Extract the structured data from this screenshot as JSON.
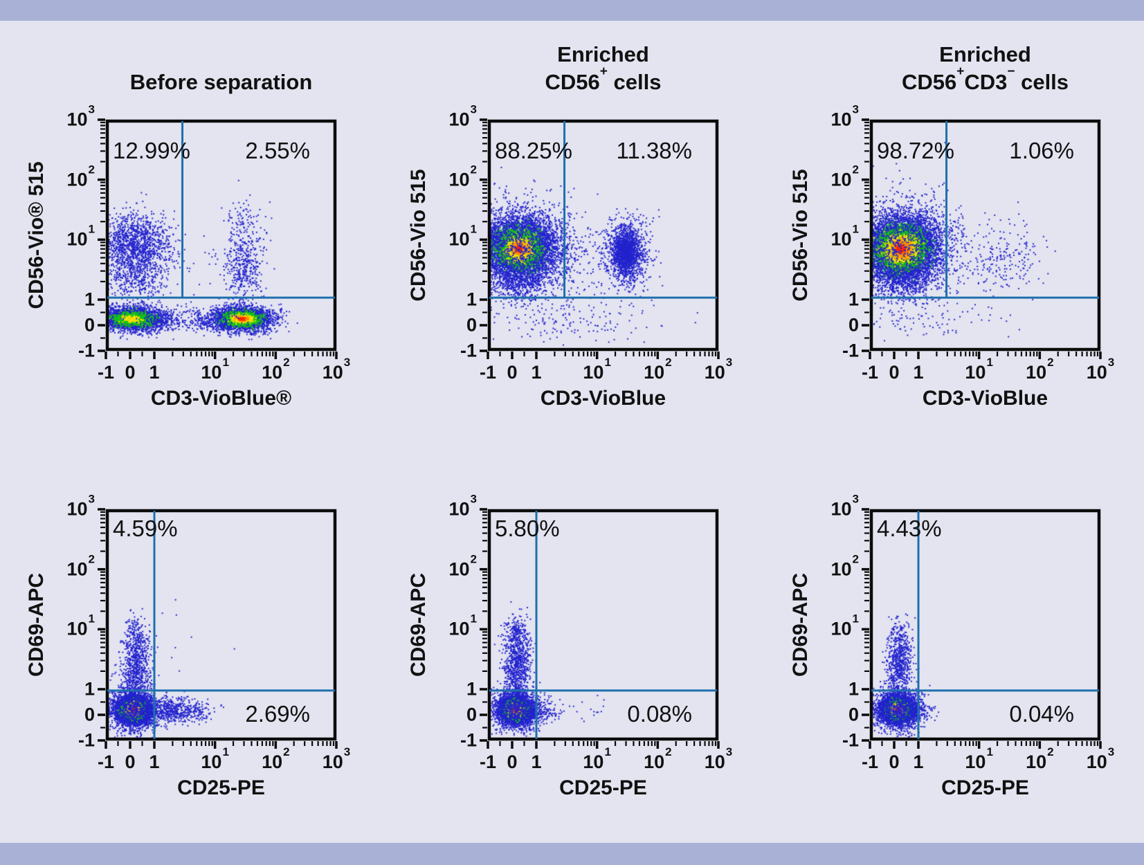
{
  "figure": {
    "background": "#e3e4f0",
    "band_color": "#a9b2d6",
    "frame_color": "#0b0b0b",
    "gate_color": "#1f6fad",
    "text_color": "#111111",
    "dot_palette": {
      "blue": "#2323cd",
      "green": "#17c317",
      "yellow": "#ffe000",
      "orange": "#ff8a00",
      "red": "#ff2600"
    }
  },
  "chart_data": {
    "type": "scatter",
    "scale": "biexponential (linear -1..1, log10 1..1000)",
    "x_range": [
      -1,
      1000
    ],
    "y_range": [
      -1,
      1000
    ],
    "ticks": [
      {
        "v": -1,
        "b": "-1",
        "s": ""
      },
      {
        "v": 0,
        "b": "0",
        "s": ""
      },
      {
        "v": 1,
        "b": "1",
        "s": ""
      },
      {
        "v": 10,
        "b": "10",
        "s": "1"
      },
      {
        "v": 100,
        "b": "10",
        "s": "2"
      },
      {
        "v": 1000,
        "b": "10",
        "s": "3"
      }
    ],
    "panels": [
      {
        "title": {
          "lines": [
            [
              {
                "t": "Before separation"
              }
            ]
          ]
        },
        "y_label": "CD56-Vio® 515",
        "x_label": "CD3-VioBlue®",
        "percentages": {
          "upper_left": "12.99%",
          "upper_right": "2.55%"
        },
        "gates": {
          "v_x": 2.9,
          "h_y": 1.08,
          "v_extent": "above_h"
        },
        "clusters": [
          {
            "x": 0.1,
            "y": 0.25,
            "sx": 26,
            "sy": 9,
            "n": 2500,
            "layers": [
              [
                "blue",
                1,
                1
              ],
              [
                "green",
                0.38,
                0.5
              ],
              [
                "yellow",
                0.05,
                0.28
              ]
            ]
          },
          {
            "x": 28,
            "y": 0.25,
            "sx": 23,
            "sy": 9,
            "n": 2600,
            "layers": [
              [
                "blue",
                1,
                1
              ],
              [
                "green",
                0.45,
                0.52
              ],
              [
                "yellow",
                0.15,
                0.3
              ],
              [
                "orange",
                0.05,
                0.2
              ],
              [
                "red",
                0.015,
                0.12
              ]
            ]
          },
          {
            "x": 4,
            "y": 0.2,
            "sx": 45,
            "sy": 10,
            "n": 260,
            "layers": [
              [
                "blue",
                1,
                1
              ]
            ]
          },
          {
            "x": 0.25,
            "y": 8,
            "sx": 25,
            "sy": 24,
            "n": 1300,
            "layers": [
              [
                "blue",
                1,
                1
              ]
            ]
          },
          {
            "x": 0.25,
            "y": 2.2,
            "sx": 22,
            "sy": 14,
            "n": 280,
            "layers": [
              [
                "blue",
                1,
                1
              ]
            ]
          },
          {
            "x": 30,
            "y": 3.5,
            "sx": 15,
            "sy": 26,
            "n": 430,
            "layers": [
              [
                "blue",
                1,
                1
              ]
            ]
          },
          {
            "x": 30,
            "y": 22,
            "sx": 14,
            "sy": 14,
            "n": 70,
            "layers": [
              [
                "blue",
                1,
                1
              ]
            ]
          },
          {
            "x": 3,
            "y": 6,
            "sx": 55,
            "sy": 30,
            "n": 55,
            "layers": [
              [
                "blue",
                1,
                1
              ]
            ]
          }
        ]
      },
      {
        "title": {
          "lines": [
            [
              {
                "t": "Enriched"
              }
            ],
            [
              {
                "t": "CD56"
              },
              {
                "t": "+",
                "sup": true
              },
              {
                "t": " cells"
              }
            ]
          ]
        },
        "y_label": "CD56-Vio 515",
        "x_label": "CD3-VioBlue",
        "percentages": {
          "upper_left": "88.25%",
          "upper_right": "11.38%"
        },
        "gates": {
          "v_x": 2.9,
          "h_y": 1.08,
          "v_extent": "above_h"
        },
        "clusters": [
          {
            "x": 0.3,
            "y": 7,
            "sx": 26,
            "sy": 23,
            "n": 5200,
            "layers": [
              [
                "blue",
                1,
                1
              ],
              [
                "green",
                0.45,
                0.55
              ],
              [
                "yellow",
                0.16,
                0.34
              ],
              [
                "orange",
                0.05,
                0.2
              ],
              [
                "red",
                0.012,
                0.1
              ]
            ]
          },
          {
            "x": 0.3,
            "y": 7,
            "sx": 42,
            "sy": 36,
            "n": 1400,
            "layers": [
              [
                "blue",
                1,
                1
              ]
            ]
          },
          {
            "x": 0.3,
            "y": 1.8,
            "sx": 22,
            "sy": 12,
            "n": 300,
            "layers": [
              [
                "blue",
                1,
                1
              ]
            ]
          },
          {
            "x": 30,
            "y": 6,
            "sx": 14,
            "sy": 21,
            "n": 1150,
            "layers": [
              [
                "blue",
                1,
                1
              ],
              [
                "blue",
                0.5,
                0.5
              ]
            ]
          },
          {
            "x": 30,
            "y": 6,
            "sx": 22,
            "sy": 30,
            "n": 230,
            "layers": [
              [
                "blue",
                1,
                1
              ]
            ]
          },
          {
            "x": 4,
            "y": 4,
            "sx": 45,
            "sy": 35,
            "n": 90,
            "layers": [
              [
                "blue",
                1,
                1
              ]
            ]
          },
          {
            "x": 3,
            "y": 0.1,
            "sx": 70,
            "sy": 15,
            "n": 140,
            "layers": [
              [
                "blue",
                1,
                1
              ]
            ]
          }
        ]
      },
      {
        "title": {
          "lines": [
            [
              {
                "t": "Enriched"
              }
            ],
            [
              {
                "t": "CD56"
              },
              {
                "t": "+",
                "sup": true
              },
              {
                "t": "CD3"
              },
              {
                "t": "−",
                "sup": true
              },
              {
                "t": " cells"
              }
            ]
          ]
        },
        "y_label": "CD56-Vio 515",
        "x_label": "CD3-VioBlue",
        "percentages": {
          "upper_left": "98.72%",
          "upper_right": "1.06%"
        },
        "gates": {
          "v_x": 2.9,
          "h_y": 1.08,
          "v_extent": "above_h"
        },
        "clusters": [
          {
            "x": 0.3,
            "y": 7,
            "sx": 27,
            "sy": 24,
            "n": 6500,
            "layers": [
              [
                "blue",
                1,
                1
              ],
              [
                "green",
                0.5,
                0.58
              ],
              [
                "yellow",
                0.22,
                0.38
              ],
              [
                "orange",
                0.08,
                0.24
              ],
              [
                "red",
                0.02,
                0.12
              ]
            ]
          },
          {
            "x": 0.3,
            "y": 7,
            "sx": 44,
            "sy": 38,
            "n": 1300,
            "layers": [
              [
                "blue",
                1,
                1
              ]
            ]
          },
          {
            "x": 0.3,
            "y": 1.8,
            "sx": 22,
            "sy": 12,
            "n": 260,
            "layers": [
              [
                "blue",
                1,
                1
              ]
            ]
          },
          {
            "x": 25,
            "y": 5,
            "sx": 28,
            "sy": 26,
            "n": 210,
            "layers": [
              [
                "blue",
                1,
                1
              ]
            ]
          },
          {
            "x": 1.5,
            "y": 0.1,
            "sx": 55,
            "sy": 14,
            "n": 80,
            "layers": [
              [
                "blue",
                1,
                1
              ]
            ]
          }
        ]
      },
      {
        "title": {
          "lines": []
        },
        "y_label": "CD69-APC",
        "x_label": "CD25-PE",
        "percentages": {
          "upper_left": "4.59%",
          "lower_right": "2.69%"
        },
        "gates": {
          "v_x": 1.0,
          "h_y": 0.95,
          "v_extent": "full"
        },
        "clusters": [
          {
            "x": 0.15,
            "y": 0.2,
            "sx": 12,
            "sy": 10,
            "n": 4200,
            "layers": [
              [
                "blue",
                1,
                1
              ],
              [
                "green",
                0.5,
                0.55
              ],
              [
                "yellow",
                0.22,
                0.36
              ],
              [
                "orange",
                0.07,
                0.22
              ],
              [
                "red",
                0.02,
                0.12
              ]
            ]
          },
          {
            "x": 0.15,
            "y": 0.2,
            "sx": 20,
            "sy": 17,
            "n": 1000,
            "layers": [
              [
                "blue",
                1,
                1
              ]
            ]
          },
          {
            "x": 0.25,
            "y": 2.5,
            "sx": 10,
            "sy": 26,
            "n": 700,
            "layers": [
              [
                "blue",
                1,
                1
              ]
            ]
          },
          {
            "x": 0.25,
            "y": 9,
            "sx": 9,
            "sy": 12,
            "n": 85,
            "layers": [
              [
                "blue",
                1,
                1
              ]
            ]
          },
          {
            "x": 1.8,
            "y": 0.15,
            "sx": 24,
            "sy": 9,
            "n": 520,
            "layers": [
              [
                "blue",
                1,
                1
              ]
            ]
          },
          {
            "x": 5,
            "y": 0.1,
            "sx": 14,
            "sy": 8,
            "n": 80,
            "layers": [
              [
                "blue",
                1,
                1
              ]
            ]
          },
          {
            "x": 4,
            "y": 3,
            "sx": 45,
            "sy": 35,
            "n": 10,
            "layers": [
              [
                "blue",
                1,
                1
              ]
            ]
          }
        ]
      },
      {
        "title": {
          "lines": []
        },
        "y_label": "CD69-APC",
        "x_label": "CD25-PE",
        "percentages": {
          "upper_left": "5.80%",
          "lower_right": "0.08%"
        },
        "gates": {
          "v_x": 1.0,
          "h_y": 0.95,
          "v_extent": "full"
        },
        "clusters": [
          {
            "x": 0.15,
            "y": 0.2,
            "sx": 12,
            "sy": 10,
            "n": 3900,
            "layers": [
              [
                "blue",
                1,
                1
              ],
              [
                "green",
                0.5,
                0.55
              ],
              [
                "yellow",
                0.2,
                0.34
              ],
              [
                "orange",
                0.05,
                0.2
              ],
              [
                "red",
                0.012,
                0.1
              ]
            ]
          },
          {
            "x": 0.15,
            "y": 0.2,
            "sx": 19,
            "sy": 16,
            "n": 900,
            "layers": [
              [
                "blue",
                1,
                1
              ]
            ]
          },
          {
            "x": 0.2,
            "y": 2.8,
            "sx": 10,
            "sy": 27,
            "n": 800,
            "layers": [
              [
                "blue",
                1,
                1
              ]
            ]
          },
          {
            "x": 0.2,
            "y": 10,
            "sx": 9,
            "sy": 11,
            "n": 110,
            "layers": [
              [
                "blue",
                1,
                1
              ]
            ]
          },
          {
            "x": 1.2,
            "y": 0.15,
            "sx": 14,
            "sy": 8,
            "n": 150,
            "layers": [
              [
                "blue",
                1,
                1
              ]
            ]
          },
          {
            "x": 3.5,
            "y": 0.3,
            "sx": 26,
            "sy": 10,
            "n": 20,
            "layers": [
              [
                "blue",
                1,
                1
              ]
            ]
          }
        ]
      },
      {
        "title": {
          "lines": []
        },
        "y_label": "CD69-APC",
        "x_label": "CD25-PE",
        "percentages": {
          "upper_left": "4.43%",
          "lower_right": "0.04%"
        },
        "gates": {
          "v_x": 1.0,
          "h_y": 0.95,
          "v_extent": "full"
        },
        "clusters": [
          {
            "x": 0.15,
            "y": 0.2,
            "sx": 12,
            "sy": 10,
            "n": 3900,
            "layers": [
              [
                "blue",
                1,
                1
              ],
              [
                "green",
                0.5,
                0.55
              ],
              [
                "yellow",
                0.2,
                0.34
              ],
              [
                "orange",
                0.05,
                0.2
              ],
              [
                "red",
                0.015,
                0.1
              ]
            ]
          },
          {
            "x": 0.15,
            "y": 0.2,
            "sx": 19,
            "sy": 16,
            "n": 900,
            "layers": [
              [
                "blue",
                1,
                1
              ]
            ]
          },
          {
            "x": 0.2,
            "y": 2.5,
            "sx": 9,
            "sy": 25,
            "n": 620,
            "layers": [
              [
                "blue",
                1,
                1
              ]
            ]
          },
          {
            "x": 0.2,
            "y": 8,
            "sx": 8,
            "sy": 11,
            "n": 80,
            "layers": [
              [
                "blue",
                1,
                1
              ]
            ]
          },
          {
            "x": 1.0,
            "y": 0.15,
            "sx": 11,
            "sy": 8,
            "n": 80,
            "layers": [
              [
                "blue",
                1,
                1
              ]
            ]
          }
        ]
      }
    ]
  }
}
